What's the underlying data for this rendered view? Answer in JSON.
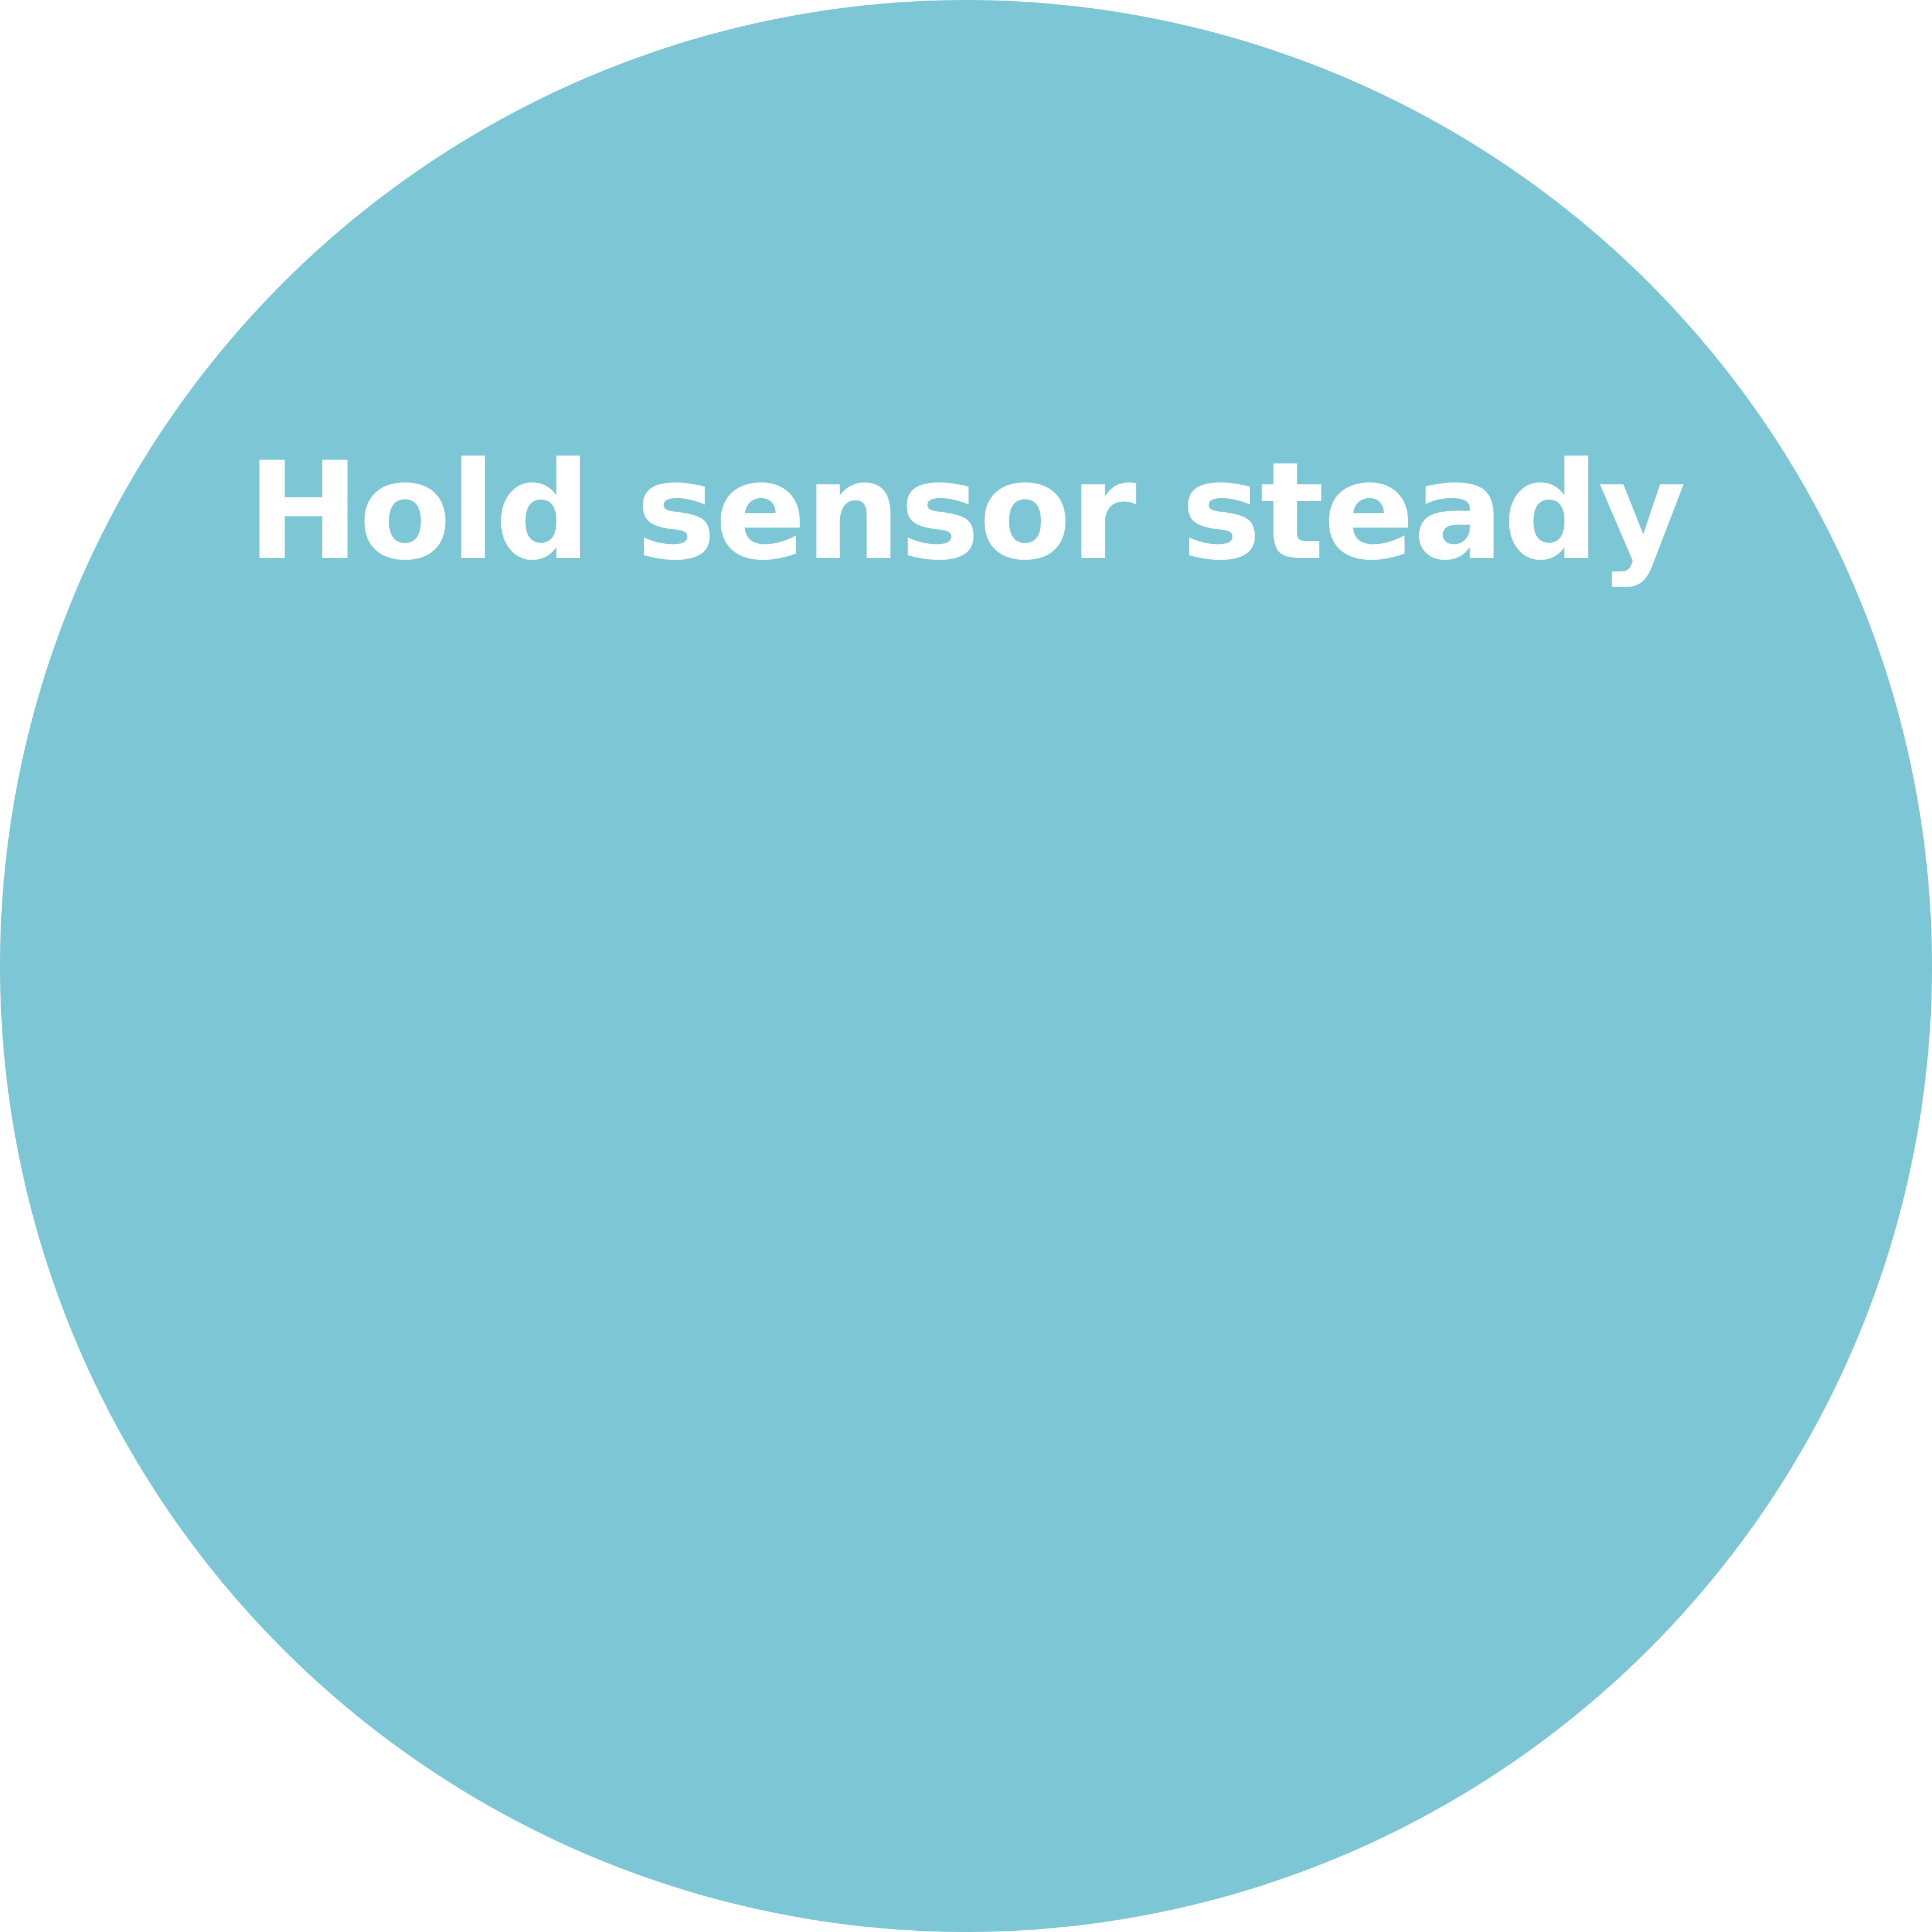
{
  "indicator": {
    "message": "Hold sensor steady",
    "background_color": "#7cc6d6",
    "text_color": "#ffffff",
    "page_background": "#ffffff"
  }
}
